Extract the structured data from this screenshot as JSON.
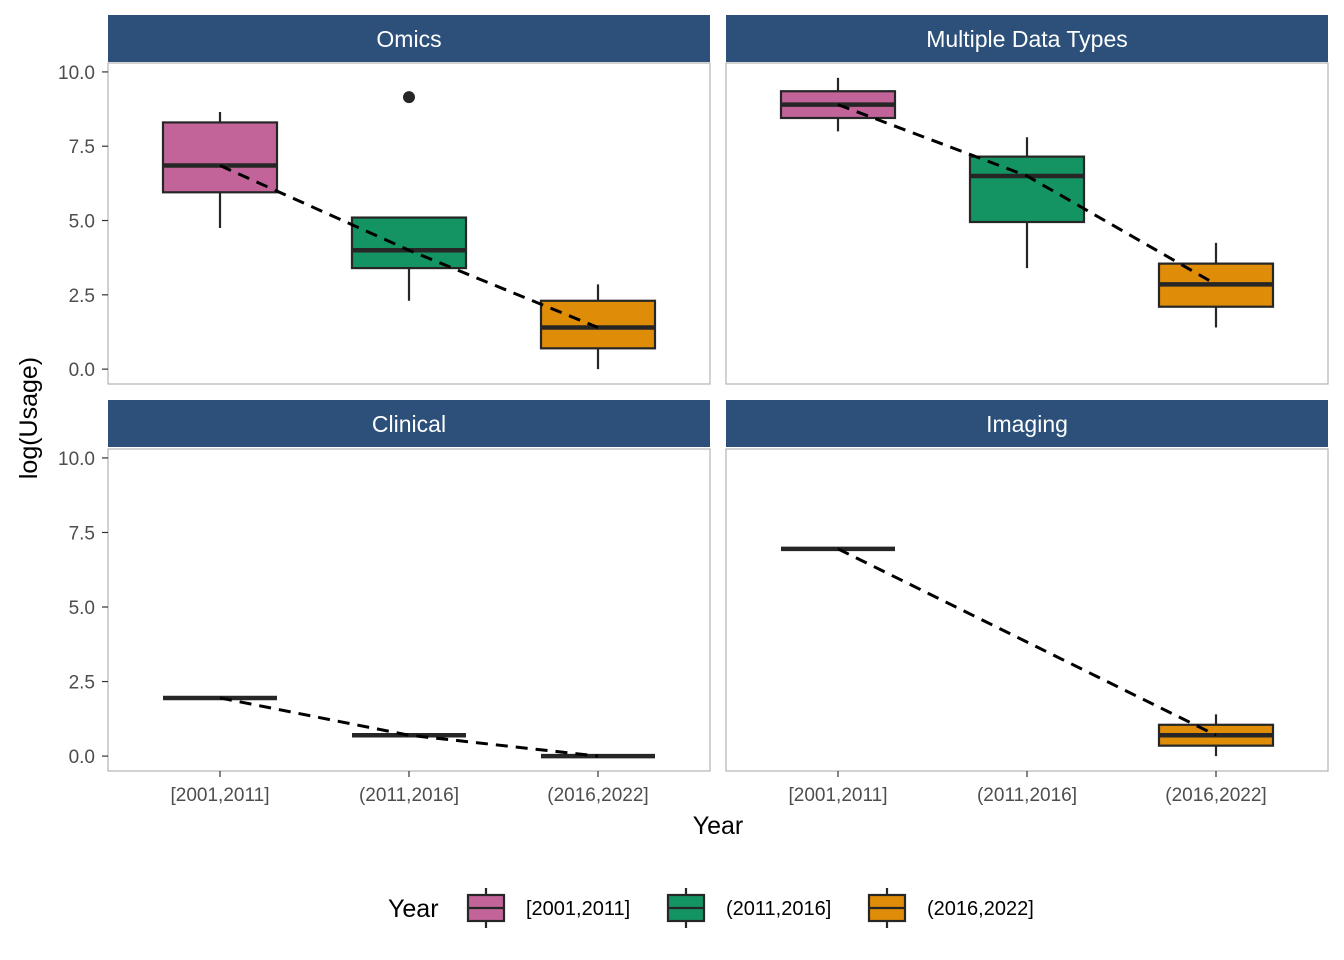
{
  "chart_data": {
    "type": "box",
    "xlabel": "Year",
    "ylabel": "log(Usage)",
    "ylim": [
      -0.5,
      10.3
    ],
    "yticks": [
      "0.0",
      "2.5",
      "5.0",
      "7.5",
      "10.0"
    ],
    "ytick_values": [
      0,
      2.5,
      5,
      7.5,
      10
    ],
    "categories": [
      "[2001,2011]",
      "(2011,2016]",
      "(2016,2022]"
    ],
    "colors": {
      "[2001,2011]": "#c2649a",
      "(2011,2016]": "#149463",
      "(2016,2022]": "#df8d08",
      "strip": "#2c5079",
      "outline": "#262626"
    },
    "legend": {
      "title": "Year",
      "position": "bottom",
      "entries": [
        "[2001,2011]",
        "(2011,2016]",
        "(2016,2022]"
      ]
    },
    "facets": [
      {
        "title": "Omics",
        "boxes": [
          {
            "category": "[2001,2011]",
            "q1": 5.95,
            "median": 6.85,
            "q3": 8.3,
            "whisker_low": 4.75,
            "whisker_high": 8.65,
            "outliers": []
          },
          {
            "category": "(2011,2016]",
            "q1": 3.4,
            "median": 4.0,
            "q3": 5.1,
            "whisker_low": 2.3,
            "whisker_high": 5.1,
            "outliers": [
              9.15
            ]
          },
          {
            "category": "(2016,2022]",
            "q1": 0.7,
            "median": 1.4,
            "q3": 2.3,
            "whisker_low": 0.0,
            "whisker_high": 2.85,
            "outliers": []
          }
        ]
      },
      {
        "title": "Multiple Data Types",
        "boxes": [
          {
            "category": "[2001,2011]",
            "q1": 8.45,
            "median": 8.9,
            "q3": 9.35,
            "whisker_low": 8.0,
            "whisker_high": 9.8,
            "outliers": []
          },
          {
            "category": "(2011,2016]",
            "q1": 4.95,
            "median": 6.5,
            "q3": 7.15,
            "whisker_low": 3.4,
            "whisker_high": 7.8,
            "outliers": []
          },
          {
            "category": "(2016,2022]",
            "q1": 2.1,
            "median": 2.85,
            "q3": 3.55,
            "whisker_low": 1.4,
            "whisker_high": 4.25,
            "outliers": []
          }
        ]
      },
      {
        "title": "Clinical",
        "boxes": [
          {
            "category": "[2001,2011]",
            "q1": 1.95,
            "median": 1.95,
            "q3": 1.95,
            "whisker_low": 1.95,
            "whisker_high": 1.95,
            "outliers": []
          },
          {
            "category": "(2011,2016]",
            "q1": 0.7,
            "median": 0.7,
            "q3": 0.7,
            "whisker_low": 0.7,
            "whisker_high": 0.7,
            "outliers": []
          },
          {
            "category": "(2016,2022]",
            "q1": 0.0,
            "median": 0.0,
            "q3": 0.0,
            "whisker_low": 0.0,
            "whisker_high": 0.0,
            "outliers": []
          }
        ]
      },
      {
        "title": "Imaging",
        "boxes": [
          {
            "category": "[2001,2011]",
            "q1": 6.95,
            "median": 6.95,
            "q3": 6.95,
            "whisker_low": 6.95,
            "whisker_high": 6.95,
            "outliers": []
          },
          {
            "category": "(2016,2022]",
            "q1": 0.35,
            "median": 0.7,
            "q3": 1.05,
            "whisker_low": 0.0,
            "whisker_high": 1.4,
            "outliers": []
          }
        ]
      }
    ]
  }
}
